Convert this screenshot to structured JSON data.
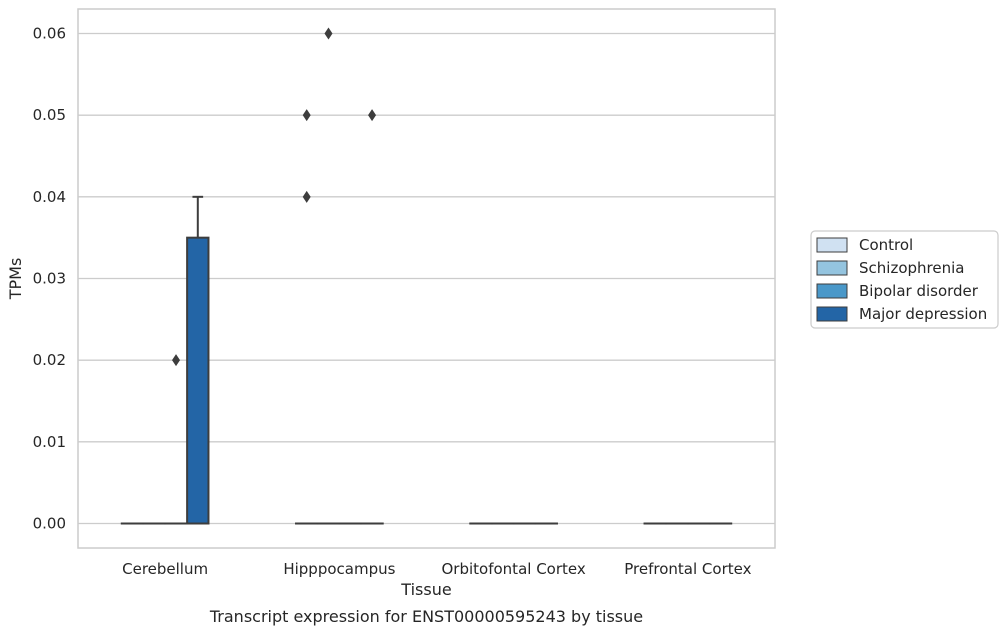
{
  "chart_data": {
    "type": "box",
    "xlabel": "Tissue",
    "ylabel": "TPMs",
    "caption": "Transcript expression for ENST00000595243 by tissue",
    "categories": [
      "Cerebellum",
      "Hipppocampus",
      "Orbitofontal Cortex",
      "Prefrontal Cortex"
    ],
    "ylim": [
      -0.003,
      0.063
    ],
    "yticks": [
      0.0,
      0.01,
      0.02,
      0.03,
      0.04,
      0.05,
      0.06
    ],
    "ytick_labels": [
      "0.00",
      "0.01",
      "0.02",
      "0.03",
      "0.04",
      "0.05",
      "0.06"
    ],
    "grid": "horizontal",
    "legend_position": "right",
    "series": [
      {
        "name": "Control",
        "color": "#d0e1f2",
        "boxes": [
          {
            "q1": 0,
            "median": 0,
            "q3": 0,
            "whislo": 0,
            "whishi": 0,
            "outliers": []
          },
          {
            "q1": 0,
            "median": 0,
            "q3": 0,
            "whislo": 0,
            "whishi": 0,
            "outliers": [
              0.04,
              0.05
            ]
          },
          {
            "q1": 0,
            "median": 0,
            "q3": 0,
            "whislo": 0,
            "whishi": 0,
            "outliers": []
          },
          {
            "q1": 0,
            "median": 0,
            "q3": 0,
            "whislo": 0,
            "whishi": 0,
            "outliers": []
          }
        ]
      },
      {
        "name": "Schizophrenia",
        "color": "#94c4df",
        "boxes": [
          {
            "q1": 0,
            "median": 0,
            "q3": 0,
            "whislo": 0,
            "whishi": 0,
            "outliers": []
          },
          {
            "q1": 0,
            "median": 0,
            "q3": 0,
            "whislo": 0,
            "whishi": 0,
            "outliers": [
              0.06
            ]
          },
          {
            "q1": 0,
            "median": 0,
            "q3": 0,
            "whislo": 0,
            "whishi": 0,
            "outliers": []
          },
          {
            "q1": 0,
            "median": 0,
            "q3": 0,
            "whislo": 0,
            "whishi": 0,
            "outliers": []
          }
        ]
      },
      {
        "name": "Bipolar disorder",
        "color": "#4a98c9",
        "boxes": [
          {
            "q1": 0,
            "median": 0,
            "q3": 0,
            "whislo": 0,
            "whishi": 0,
            "outliers": [
              0.02
            ]
          },
          {
            "q1": 0,
            "median": 0,
            "q3": 0,
            "whislo": 0,
            "whishi": 0,
            "outliers": []
          },
          {
            "q1": 0,
            "median": 0,
            "q3": 0,
            "whislo": 0,
            "whishi": 0,
            "outliers": []
          },
          {
            "q1": 0,
            "median": 0,
            "q3": 0,
            "whislo": 0,
            "whishi": 0,
            "outliers": []
          }
        ]
      },
      {
        "name": "Major depression",
        "color": "#2365a6",
        "boxes": [
          {
            "q1": 0,
            "median": 0,
            "q3": 0.035,
            "whislo": 0,
            "whishi": 0.04,
            "outliers": []
          },
          {
            "q1": 0,
            "median": 0,
            "q3": 0,
            "whislo": 0,
            "whishi": 0,
            "outliers": [
              0.05
            ]
          },
          {
            "q1": 0,
            "median": 0,
            "q3": 0,
            "whislo": 0,
            "whishi": 0,
            "outliers": []
          },
          {
            "q1": 0,
            "median": 0,
            "q3": 0,
            "whislo": 0,
            "whishi": 0,
            "outliers": []
          }
        ]
      }
    ]
  }
}
